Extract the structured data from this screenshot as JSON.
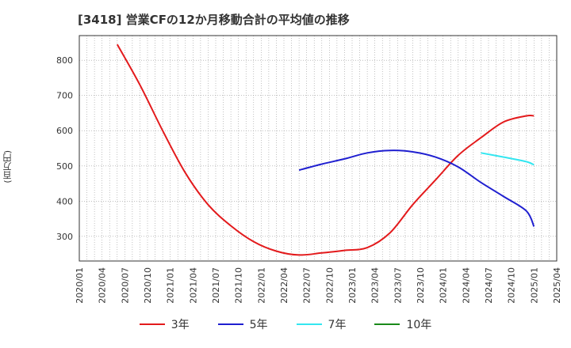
{
  "chart_data": {
    "type": "line",
    "title": "[3418]  営業CFの12か月移動合計の平均値の推移",
    "ylabel": "(百万円)",
    "xlabel": "",
    "ylim": [
      230,
      870
    ],
    "yticks": [
      300,
      400,
      500,
      600,
      700,
      800
    ],
    "xticks": [
      "2020/01",
      "2020/04",
      "2020/07",
      "2020/10",
      "2021/01",
      "2021/04",
      "2021/07",
      "2021/10",
      "2022/01",
      "2022/04",
      "2022/07",
      "2022/10",
      "2023/01",
      "2023/04",
      "2023/07",
      "2023/10",
      "2024/01",
      "2024/04",
      "2024/07",
      "2024/10",
      "2025/01",
      "2025/04"
    ],
    "grid": true,
    "legend_position": "bottom",
    "series": [
      {
        "name": "3年",
        "color": "#e31a1c",
        "points": [
          [
            "2020/06",
            845
          ],
          [
            "2020/09",
            730
          ],
          [
            "2020/12",
            600
          ],
          [
            "2021/03",
            480
          ],
          [
            "2021/06",
            390
          ],
          [
            "2021/09",
            330
          ],
          [
            "2021/12",
            285
          ],
          [
            "2022/03",
            258
          ],
          [
            "2022/06",
            247
          ],
          [
            "2022/09",
            253
          ],
          [
            "2022/12",
            260
          ],
          [
            "2023/03",
            268
          ],
          [
            "2023/06",
            310
          ],
          [
            "2023/09",
            390
          ],
          [
            "2023/12",
            460
          ],
          [
            "2024/03",
            530
          ],
          [
            "2024/06",
            580
          ],
          [
            "2024/09",
            625
          ],
          [
            "2024/12",
            642
          ],
          [
            "2025/01",
            642
          ]
        ]
      },
      {
        "name": "5年",
        "color": "#1f1fd0",
        "points": [
          [
            "2022/06",
            488
          ],
          [
            "2022/09",
            505
          ],
          [
            "2022/12",
            520
          ],
          [
            "2023/03",
            537
          ],
          [
            "2023/06",
            544
          ],
          [
            "2023/09",
            540
          ],
          [
            "2023/12",
            525
          ],
          [
            "2024/03",
            497
          ],
          [
            "2024/06",
            453
          ],
          [
            "2024/09",
            413
          ],
          [
            "2024/12",
            372
          ],
          [
            "2025/01",
            328
          ]
        ]
      },
      {
        "name": "7年",
        "color": "#33e6f0",
        "points": [
          [
            "2024/06",
            537
          ],
          [
            "2024/09",
            525
          ],
          [
            "2024/12",
            512
          ],
          [
            "2025/01",
            503
          ]
        ]
      },
      {
        "name": "10年",
        "color": "#1a8a1a",
        "points": []
      }
    ]
  }
}
